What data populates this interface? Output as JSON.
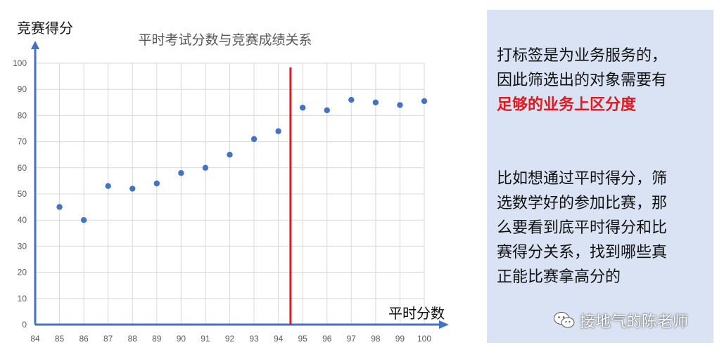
{
  "chart_data": {
    "type": "scatter",
    "title": "平时考试分数与竞赛成绩关系",
    "xlabel": "平时分数",
    "ylabel": "竞赛得分",
    "xlim": [
      84,
      100
    ],
    "ylim": [
      0,
      100
    ],
    "x_ticks": [
      84,
      85,
      86,
      87,
      88,
      89,
      90,
      91,
      92,
      93,
      94,
      95,
      96,
      97,
      98,
      99,
      100
    ],
    "y_ticks": [
      0,
      10,
      20,
      30,
      40,
      50,
      60,
      70,
      80,
      90,
      100
    ],
    "grid": true,
    "points": [
      {
        "x": 85,
        "y": 45
      },
      {
        "x": 86,
        "y": 40
      },
      {
        "x": 87,
        "y": 53
      },
      {
        "x": 88,
        "y": 52
      },
      {
        "x": 89,
        "y": 54
      },
      {
        "x": 90,
        "y": 58
      },
      {
        "x": 91,
        "y": 60
      },
      {
        "x": 92,
        "y": 65
      },
      {
        "x": 93,
        "y": 71
      },
      {
        "x": 94,
        "y": 74
      },
      {
        "x": 95,
        "y": 83
      },
      {
        "x": 96,
        "y": 82
      },
      {
        "x": 97,
        "y": 86
      },
      {
        "x": 98,
        "y": 85
      },
      {
        "x": 99,
        "y": 84
      },
      {
        "x": 100,
        "y": 85.5
      }
    ],
    "threshold_line": {
      "x": 94.5,
      "color": "#e8161b"
    },
    "point_color": "#4472c4",
    "axis_color": "#4472c4"
  },
  "panel": {
    "para1_line1": "打标签是为业务服务的，",
    "para1_line2": "因此筛选出的对象需要有",
    "para1_highlight": "足够的业务上区分度",
    "para2_line1": "比如想通过平时得分，筛",
    "para2_line2": "选数学好的参加比赛，那",
    "para2_line3": "么要看到底平时得分和比",
    "para2_line4": "赛得分关系，找到哪些真",
    "para2_line5": "正能比赛拿高分的"
  },
  "watermark": {
    "icon": "wechat-icon",
    "text": "接地气的陈老师"
  }
}
